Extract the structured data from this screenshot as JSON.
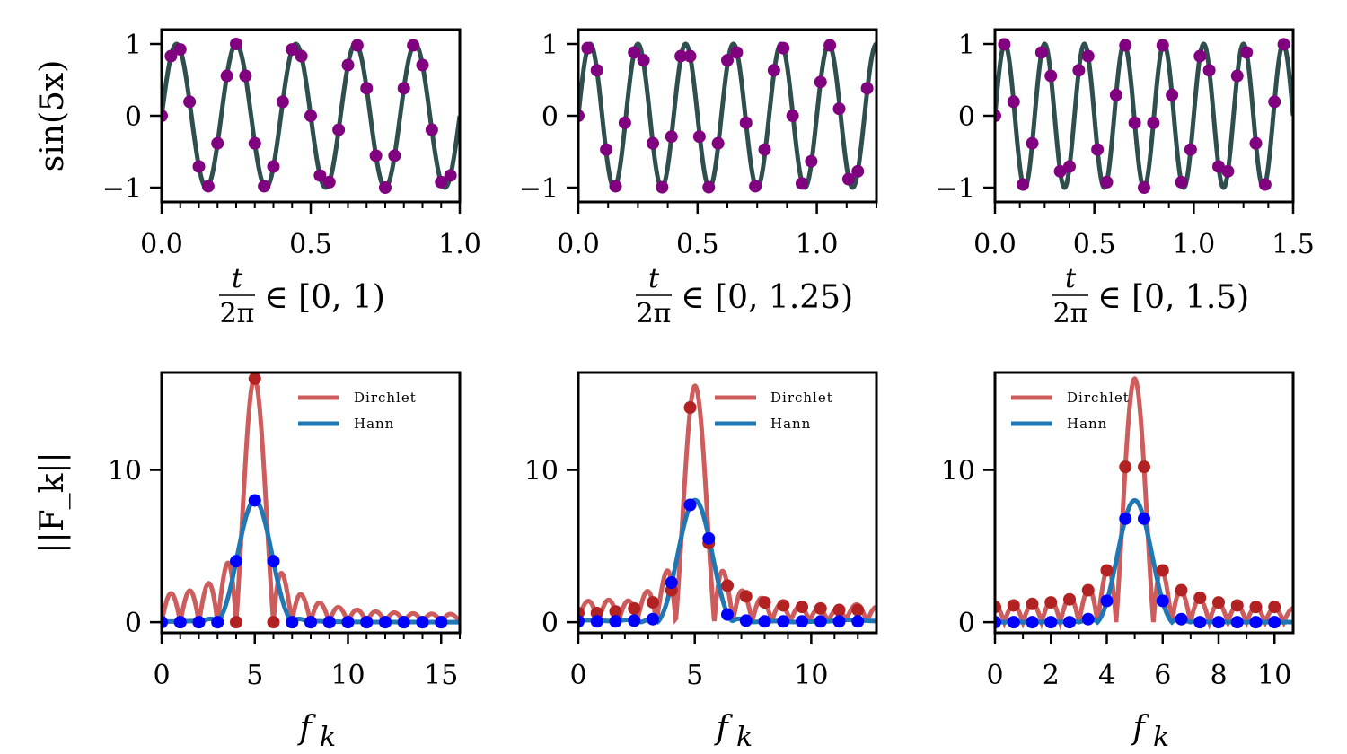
{
  "chart_data": [
    {
      "type": "scatter",
      "panel": "top-left",
      "ylabel": "sin(5x)",
      "xlabel_frac_num": "t",
      "xlabel_frac_den": "2π",
      "xlabel_rest": "∈ [0, 1)",
      "xlim": [
        0,
        1.0
      ],
      "ylim": [
        -1.2,
        1.2
      ],
      "xticks": [
        0.0,
        0.5,
        1.0
      ],
      "xtick_labels": [
        "0.0",
        "0.5",
        "1.0"
      ],
      "xminor_step": 0.0625,
      "yticks": [
        -1,
        0,
        1
      ],
      "ytick_labels": [
        "−1",
        "0",
        "1"
      ],
      "line_color": "#2f4f4f",
      "marker_color": "#800080",
      "frequency": 5,
      "sample_x": [
        0,
        0.03125,
        0.0625,
        0.09375,
        0.125,
        0.15625,
        0.1875,
        0.21875,
        0.25,
        0.28125,
        0.3125,
        0.34375,
        0.375,
        0.40625,
        0.4375,
        0.46875,
        0.5,
        0.53125,
        0.5625,
        0.59375,
        0.625,
        0.65625,
        0.6875,
        0.71875,
        0.75,
        0.78125,
        0.8125,
        0.84375,
        0.875,
        0.90625,
        0.9375,
        0.96875
      ],
      "sample_y": [
        0,
        0.831,
        0.924,
        0.195,
        -0.707,
        -0.981,
        -0.383,
        0.556,
        1,
        0.556,
        -0.383,
        -0.981,
        -0.707,
        0.195,
        0.924,
        0.831,
        0,
        -0.831,
        -0.924,
        -0.195,
        0.707,
        0.981,
        0.383,
        -0.556,
        -1,
        -0.556,
        0.383,
        0.981,
        0.707,
        -0.195,
        -0.924,
        -0.831
      ]
    },
    {
      "type": "scatter",
      "panel": "top-middle",
      "ylabel": "",
      "xlabel_frac_num": "t",
      "xlabel_frac_den": "2π",
      "xlabel_rest": "∈ [0, 1.25)",
      "xlim": [
        0,
        1.25
      ],
      "ylim": [
        -1.2,
        1.2
      ],
      "xticks": [
        0.0,
        0.5,
        1.0
      ],
      "xtick_labels": [
        "0.0",
        "0.5",
        "1.0"
      ],
      "xminor_step": 0.125,
      "yticks": [
        -1,
        0,
        1
      ],
      "ytick_labels": [
        "−1",
        "0",
        "1"
      ],
      "line_color": "#2f4f4f",
      "marker_color": "#800080",
      "frequency": 5,
      "sample_x": [
        0,
        0.0390625,
        0.078125,
        0.1171875,
        0.15625,
        0.1953125,
        0.234375,
        0.2734375,
        0.3125,
        0.3515625,
        0.390625,
        0.4296875,
        0.46875,
        0.5078125,
        0.546875,
        0.5859375,
        0.625,
        0.6640625,
        0.703125,
        0.7421875,
        0.78125,
        0.8203125,
        0.859375,
        0.8984375,
        0.9375,
        0.9765625,
        1.015625,
        1.0546875,
        1.09375,
        1.1328125,
        1.171875,
        1.2109375
      ],
      "sample_y": [
        0,
        0.942,
        0.634,
        -0.471,
        -0.981,
        -0.098,
        0.882,
        0.773,
        -0.383,
        -0.995,
        -0.29,
        0.831,
        0.831,
        -0.29,
        -0.995,
        -0.383,
        0.773,
        0.882,
        -0.098,
        -0.981,
        -0.471,
        0.634,
        0.942,
        0,
        -0.942,
        -0.634,
        0.471,
        0.981,
        0.098,
        -0.882,
        -0.773,
        0.383
      ]
    },
    {
      "type": "scatter",
      "panel": "top-right",
      "ylabel": "",
      "xlabel_frac_num": "t",
      "xlabel_frac_den": "2π",
      "xlabel_rest": "∈ [0, 1.5)",
      "xlim": [
        0,
        1.5
      ],
      "ylim": [
        -1.2,
        1.2
      ],
      "xticks": [
        0.0,
        0.5,
        1.0,
        1.5
      ],
      "xtick_labels": [
        "0.0",
        "0.5",
        "1.0",
        "1.5"
      ],
      "xminor_step": 0.125,
      "yticks": [
        -1,
        0,
        1
      ],
      "ytick_labels": [
        "−1",
        "0",
        "1"
      ],
      "line_color": "#2f4f4f",
      "marker_color": "#800080",
      "frequency": 5,
      "sample_x": [
        0,
        0.046875,
        0.09375,
        0.140625,
        0.1875,
        0.234375,
        0.28125,
        0.328125,
        0.375,
        0.421875,
        0.46875,
        0.515625,
        0.5625,
        0.609375,
        0.65625,
        0.703125,
        0.75,
        0.796875,
        0.84375,
        0.890625,
        0.9375,
        0.984375,
        1.03125,
        1.078125,
        1.125,
        1.171875,
        1.21875,
        1.265625,
        1.3125,
        1.359375,
        1.40625,
        1.453125
      ],
      "sample_y": [
        0,
        0.995,
        0.195,
        -0.957,
        -0.383,
        0.882,
        0.556,
        -0.773,
        -0.707,
        0.634,
        0.831,
        -0.471,
        -0.924,
        0.29,
        0.981,
        -0.098,
        -1,
        -0.098,
        0.981,
        0.29,
        -0.924,
        -0.471,
        0.831,
        0.634,
        -0.707,
        -0.773,
        0.556,
        0.882,
        -0.383,
        -0.957,
        0.195,
        0.995
      ]
    },
    {
      "type": "line",
      "panel": "bottom-left",
      "ylabel": "||F_k||",
      "xlabel": "f_k",
      "xlim": [
        0,
        16
      ],
      "ylim": [
        -0.7,
        16.4
      ],
      "xticks": [
        0,
        5,
        10,
        15
      ],
      "xtick_labels": [
        "0",
        "5",
        "10",
        "15"
      ],
      "xminor_step": 1,
      "yticks": [
        0,
        10
      ],
      "ytick_labels": [
        "0",
        "10"
      ],
      "legend": [
        "Dirchlet",
        "Hann"
      ],
      "legend_position": "top-right",
      "bin_spacing": 1,
      "series": [
        {
          "name": "Dirchlet",
          "line_color": "#cd5c5c",
          "marker_color": "#b22222",
          "f": [
            0,
            1,
            2,
            3,
            4,
            5,
            6,
            7,
            8,
            9,
            10,
            11,
            12,
            13,
            14,
            15
          ],
          "values": [
            0,
            0,
            0,
            0,
            0,
            16,
            0,
            0,
            0,
            0,
            0,
            0,
            0,
            0,
            0,
            0
          ]
        },
        {
          "name": "Hann",
          "line_color": "#1f77b4",
          "marker_color": "#0000ff",
          "f": [
            0,
            1,
            2,
            3,
            4,
            5,
            6,
            7,
            8,
            9,
            10,
            11,
            12,
            13,
            14,
            15
          ],
          "values": [
            0,
            0,
            0,
            0,
            4,
            8,
            4,
            0,
            0,
            0,
            0,
            0,
            0,
            0,
            0,
            0
          ]
        }
      ]
    },
    {
      "type": "line",
      "panel": "bottom-middle",
      "ylabel": "",
      "xlabel": "f_k",
      "xlim": [
        0,
        12.8
      ],
      "ylim": [
        -0.7,
        16.4
      ],
      "xticks": [
        0,
        5,
        10
      ],
      "xtick_labels": [
        "0",
        "5",
        "10"
      ],
      "xminor_step": 1,
      "yticks": [
        0,
        10
      ],
      "ytick_labels": [
        "0",
        "10"
      ],
      "legend": [
        "Dirchlet",
        "Hann"
      ],
      "legend_position": "top-right",
      "bin_spacing": 0.8,
      "series": [
        {
          "name": "Dirchlet",
          "line_color": "#cd5c5c",
          "marker_color": "#b22222",
          "f": [
            0,
            0.8,
            1.6,
            2.4,
            3.2,
            4.0,
            4.8,
            5.6,
            6.4,
            7.2,
            8.0,
            8.8,
            9.6,
            10.4,
            11.2,
            12.0
          ],
          "values": [
            0.6,
            0.6,
            0.7,
            0.9,
            1.3,
            2.1,
            14.1,
            5.2,
            2.4,
            1.7,
            1.3,
            1.1,
            1.0,
            0.9,
            0.8,
            0.8
          ]
        },
        {
          "name": "Hann",
          "line_color": "#1f77b4",
          "marker_color": "#0000ff",
          "f": [
            0,
            0.8,
            1.6,
            2.4,
            3.2,
            4.0,
            4.8,
            5.6,
            6.4,
            7.2,
            8.0,
            8.8,
            9.6,
            10.4,
            11.2,
            12.0
          ],
          "values": [
            0.05,
            0.05,
            0.05,
            0.1,
            0.2,
            2.6,
            7.7,
            5.5,
            0.5,
            0.1,
            0.05,
            0.05,
            0.05,
            0.05,
            0.05,
            0.05
          ]
        }
      ]
    },
    {
      "type": "line",
      "panel": "bottom-right",
      "ylabel": "",
      "xlabel": "f_k",
      "xlim": [
        0,
        10.667
      ],
      "ylim": [
        -0.7,
        16.4
      ],
      "xticks": [
        0,
        2,
        4,
        6,
        8,
        10
      ],
      "xtick_labels": [
        "0",
        "2",
        "4",
        "6",
        "8",
        "10"
      ],
      "xminor_step": 1,
      "yticks": [
        0,
        10
      ],
      "ytick_labels": [
        "0",
        "10"
      ],
      "legend": [
        "Dirchlet",
        "Hann"
      ],
      "legend_position": "top-left",
      "bin_spacing": 0.6667,
      "series": [
        {
          "name": "Dirchlet",
          "line_color": "#cd5c5c",
          "marker_color": "#b22222",
          "f": [
            0,
            0.667,
            1.333,
            2.0,
            2.667,
            3.333,
            4.0,
            4.667,
            5.333,
            6.0,
            6.667,
            7.333,
            8.0,
            8.667,
            9.333,
            10.0
          ],
          "values": [
            1.0,
            1.1,
            1.2,
            1.3,
            1.5,
            2.1,
            3.4,
            10.2,
            10.2,
            3.4,
            2.1,
            1.6,
            1.3,
            1.1,
            1.0,
            1.0
          ]
        },
        {
          "name": "Hann",
          "line_color": "#1f77b4",
          "marker_color": "#0000ff",
          "f": [
            0,
            0.667,
            1.333,
            2.0,
            2.667,
            3.333,
            4.0,
            4.667,
            5.333,
            6.0,
            6.667,
            7.333,
            8.0,
            8.667,
            9.333,
            10.0
          ],
          "values": [
            0,
            0,
            0,
            0,
            0,
            0.2,
            1.4,
            6.8,
            6.8,
            1.4,
            0.2,
            0,
            0,
            0,
            0,
            0
          ]
        }
      ]
    }
  ]
}
